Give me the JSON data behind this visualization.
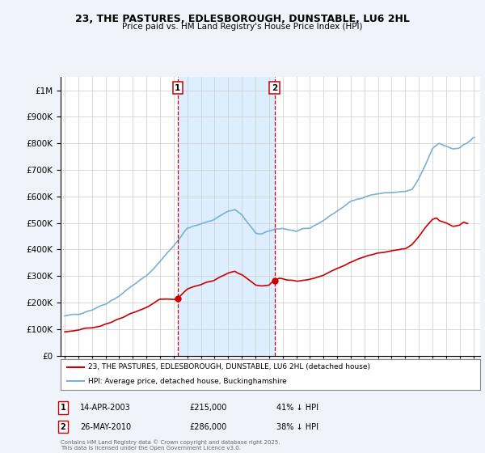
{
  "title": "23, THE PASTURES, EDLESBOROUGH, DUNSTABLE, LU6 2HL",
  "subtitle": "Price paid vs. HM Land Registry's House Price Index (HPI)",
  "legend_line1": "23, THE PASTURES, EDLESBOROUGH, DUNSTABLE, LU6 2HL (detached house)",
  "legend_line2": "HPI: Average price, detached house, Buckinghamshire",
  "annotation1": {
    "label": "1",
    "date_str": "14-APR-2003",
    "price_str": "£215,000",
    "hpi_str": "41% ↓ HPI",
    "year": 2003.29
  },
  "annotation2": {
    "label": "2",
    "date_str": "26-MAY-2010",
    "price_str": "£286,000",
    "hpi_str": "38% ↓ HPI",
    "year": 2010.4
  },
  "price_paid_color": "#cc0000",
  "hpi_color": "#7ab0d4",
  "vline_color": "#cc0000",
  "shade_color": "#ddeeff",
  "background_color": "#f0f4fa",
  "plot_bg_color": "#ffffff",
  "footer": "Contains HM Land Registry data © Crown copyright and database right 2025.\nThis data is licensed under the Open Government Licence v3.0.",
  "ylim": [
    0,
    1050000
  ],
  "xlim": [
    1994.7,
    2025.5
  ]
}
